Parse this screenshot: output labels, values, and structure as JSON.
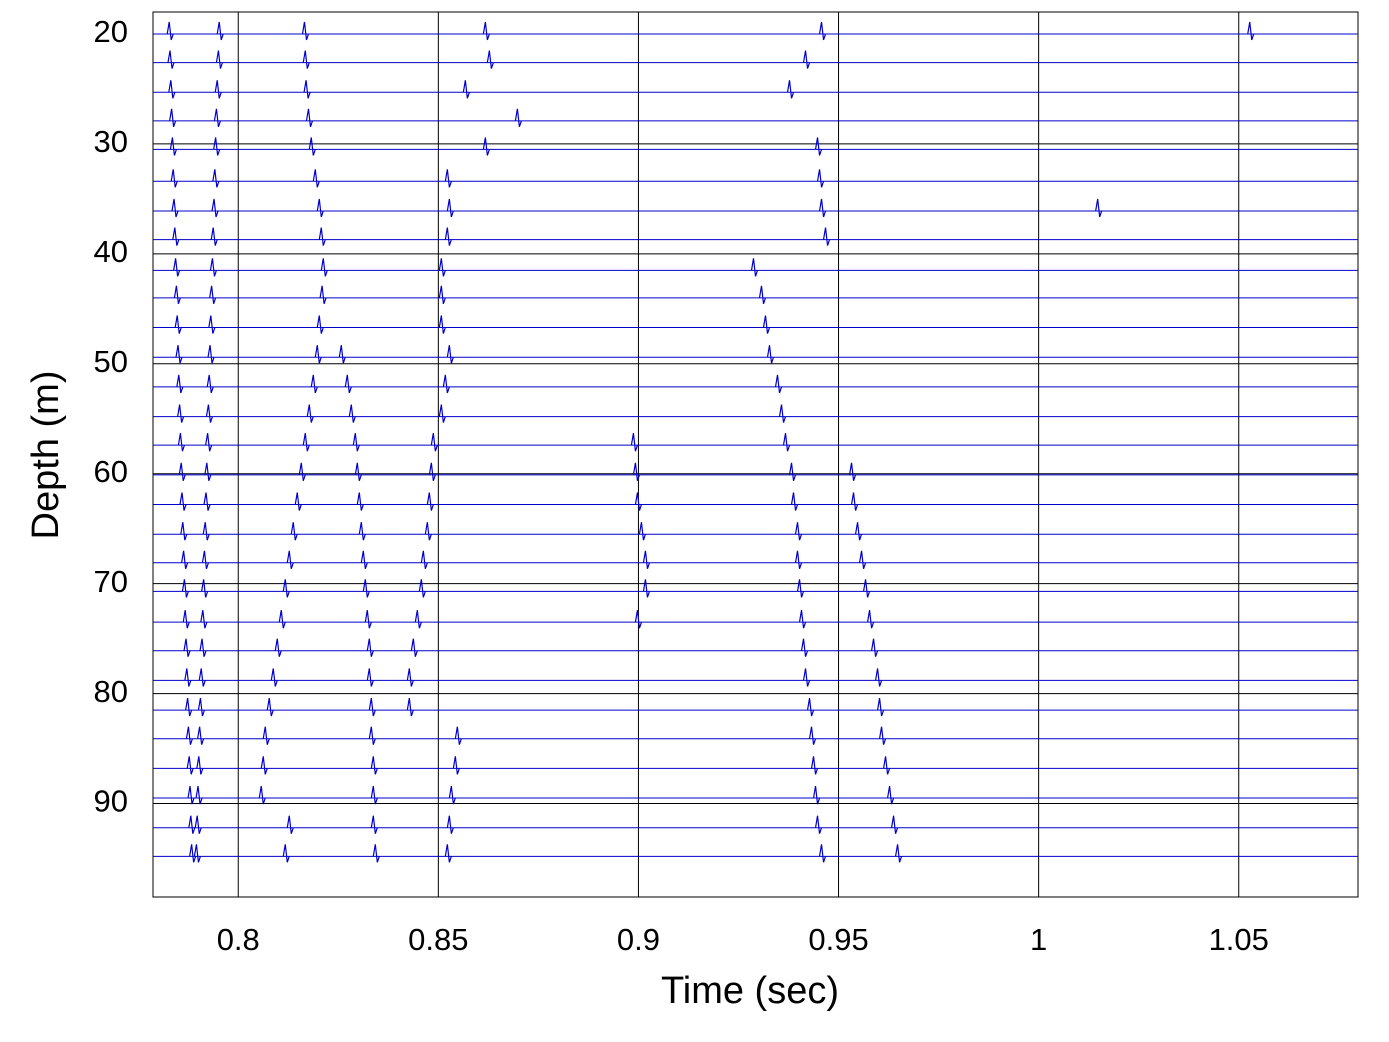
{
  "chart_data": {
    "type": "wiggle",
    "x_label": "Time (sec)",
    "y_label": "Depth (m)",
    "xlim": [
      0.7787,
      1.0798
    ],
    "ylim": [
      18,
      98.5
    ],
    "y_inverted": true,
    "grid": true,
    "color": "#0000cc",
    "xticks": [
      0.8,
      0.85,
      0.9,
      0.95,
      1,
      1.05
    ],
    "yticks": [
      20,
      30,
      40,
      50,
      60,
      70,
      80,
      90
    ],
    "traces": [
      {
        "depth": 20,
        "events": [
          0.783,
          0.7955,
          0.8168,
          0.862,
          0.946,
          1.053
        ]
      },
      {
        "depth": 22.6,
        "events": [
          0.7832,
          0.7953,
          0.817,
          0.863,
          0.942
        ]
      },
      {
        "depth": 25.3,
        "events": [
          0.7834,
          0.795,
          0.8172,
          0.857,
          0.938
        ]
      },
      {
        "depth": 27.9,
        "events": [
          0.7836,
          0.7948,
          0.8178,
          0.87
        ]
      },
      {
        "depth": 30.5,
        "events": [
          0.7838,
          0.7946,
          0.8185,
          0.862,
          0.945
        ]
      },
      {
        "depth": 33.4,
        "events": [
          0.784,
          0.7944,
          0.8195,
          0.8525,
          0.9455
        ]
      },
      {
        "depth": 36.1,
        "events": [
          0.7842,
          0.7942,
          0.8205,
          0.853,
          0.946,
          1.015
        ]
      },
      {
        "depth": 38.7,
        "events": [
          0.7844,
          0.794,
          0.821,
          0.8525,
          0.947
        ]
      },
      {
        "depth": 41.5,
        "events": [
          0.7846,
          0.7938,
          0.8215,
          0.851,
          0.929
        ]
      },
      {
        "depth": 44,
        "events": [
          0.7848,
          0.7936,
          0.8212,
          0.851,
          0.931
        ]
      },
      {
        "depth": 46.7,
        "events": [
          0.785,
          0.7934,
          0.8205,
          0.851,
          0.932
        ]
      },
      {
        "depth": 49.4,
        "events": [
          0.7852,
          0.7932,
          0.82,
          0.826,
          0.853,
          0.933
        ]
      },
      {
        "depth": 52.1,
        "events": [
          0.7854,
          0.793,
          0.819,
          0.8275,
          0.852,
          0.935
        ]
      },
      {
        "depth": 54.8,
        "events": [
          0.7856,
          0.7928,
          0.818,
          0.8285,
          0.851,
          0.936
        ]
      },
      {
        "depth": 57.4,
        "events": [
          0.7858,
          0.7926,
          0.817,
          0.8295,
          0.849,
          0.899,
          0.937
        ]
      },
      {
        "depth": 60.1,
        "events": [
          0.786,
          0.7924,
          0.816,
          0.83,
          0.8485,
          0.8995,
          0.9385,
          0.9535
        ]
      },
      {
        "depth": 62.8,
        "events": [
          0.7862,
          0.7922,
          0.815,
          0.8305,
          0.848,
          0.9,
          0.939,
          0.954
        ]
      },
      {
        "depth": 65.5,
        "events": [
          0.7864,
          0.792,
          0.814,
          0.831,
          0.8475,
          0.901,
          0.94,
          0.955
        ]
      },
      {
        "depth": 68.1,
        "events": [
          0.7866,
          0.7918,
          0.813,
          0.8315,
          0.8465,
          0.902,
          0.94,
          0.956
        ]
      },
      {
        "depth": 70.7,
        "events": [
          0.7868,
          0.7916,
          0.812,
          0.832,
          0.846,
          0.902,
          0.9405,
          0.957
        ]
      },
      {
        "depth": 73.5,
        "events": [
          0.787,
          0.7914,
          0.811,
          0.8325,
          0.845,
          0.9,
          0.941,
          0.958
        ]
      },
      {
        "depth": 76.1,
        "events": [
          0.7872,
          0.7912,
          0.81,
          0.833,
          0.844,
          0.9415,
          0.959
        ]
      },
      {
        "depth": 78.8,
        "events": [
          0.7874,
          0.791,
          0.809,
          0.833,
          0.843,
          0.942,
          0.96
        ]
      },
      {
        "depth": 81.5,
        "events": [
          0.7876,
          0.7908,
          0.808,
          0.8335,
          0.843,
          0.943,
          0.9605
        ]
      },
      {
        "depth": 84.1,
        "events": [
          0.7878,
          0.7906,
          0.807,
          0.8335,
          0.855,
          0.9435,
          0.961
        ]
      },
      {
        "depth": 86.8,
        "events": [
          0.788,
          0.7904,
          0.8065,
          0.834,
          0.8545,
          0.944,
          0.962
        ]
      },
      {
        "depth": 89.5,
        "events": [
          0.7882,
          0.7902,
          0.806,
          0.834,
          0.8535,
          0.9445,
          0.963
        ]
      },
      {
        "depth": 92.2,
        "events": [
          0.7884,
          0.79,
          0.813,
          0.834,
          0.853,
          0.945,
          0.964
        ]
      },
      {
        "depth": 94.8,
        "events": [
          0.7886,
          0.7898,
          0.812,
          0.8345,
          0.8525,
          0.946,
          0.965
        ]
      }
    ]
  }
}
